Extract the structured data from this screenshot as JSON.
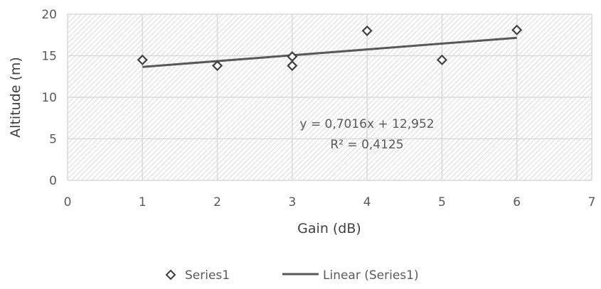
{
  "chart_data": {
    "type": "scatter",
    "title": "",
    "xlabel": "Gain (dB)",
    "ylabel": "Altitude (m)",
    "xlim": [
      0,
      7
    ],
    "ylim": [
      0,
      20
    ],
    "x_ticks": [
      "0",
      "1",
      "2",
      "3",
      "4",
      "5",
      "6",
      "7"
    ],
    "y_ticks": [
      "0",
      "5",
      "10",
      "15",
      "20"
    ],
    "grid": true,
    "plot_background": "diagonal hatch",
    "series": [
      {
        "name": "Series1",
        "marker": "diamond-open",
        "color": "#404040",
        "points": [
          {
            "x": 1,
            "y": 14.5
          },
          {
            "x": 2,
            "y": 13.8
          },
          {
            "x": 3,
            "y": 13.8
          },
          {
            "x": 3,
            "y": 14.9
          },
          {
            "x": 4,
            "y": 18.0
          },
          {
            "x": 5,
            "y": 14.5
          },
          {
            "x": 6,
            "y": 18.1
          }
        ]
      }
    ],
    "trendline": {
      "name": "Linear (Series1)",
      "type": "linear",
      "slope": 0.7016,
      "intercept": 12.952,
      "x_range": [
        1,
        6
      ],
      "color": "#595959",
      "equation_text": "y = 0,7016x + 12,952",
      "r2_text": "R² = 0,4125"
    },
    "legend": {
      "position": "bottom",
      "entries": [
        "Series1",
        "Linear (Series1)"
      ]
    }
  }
}
